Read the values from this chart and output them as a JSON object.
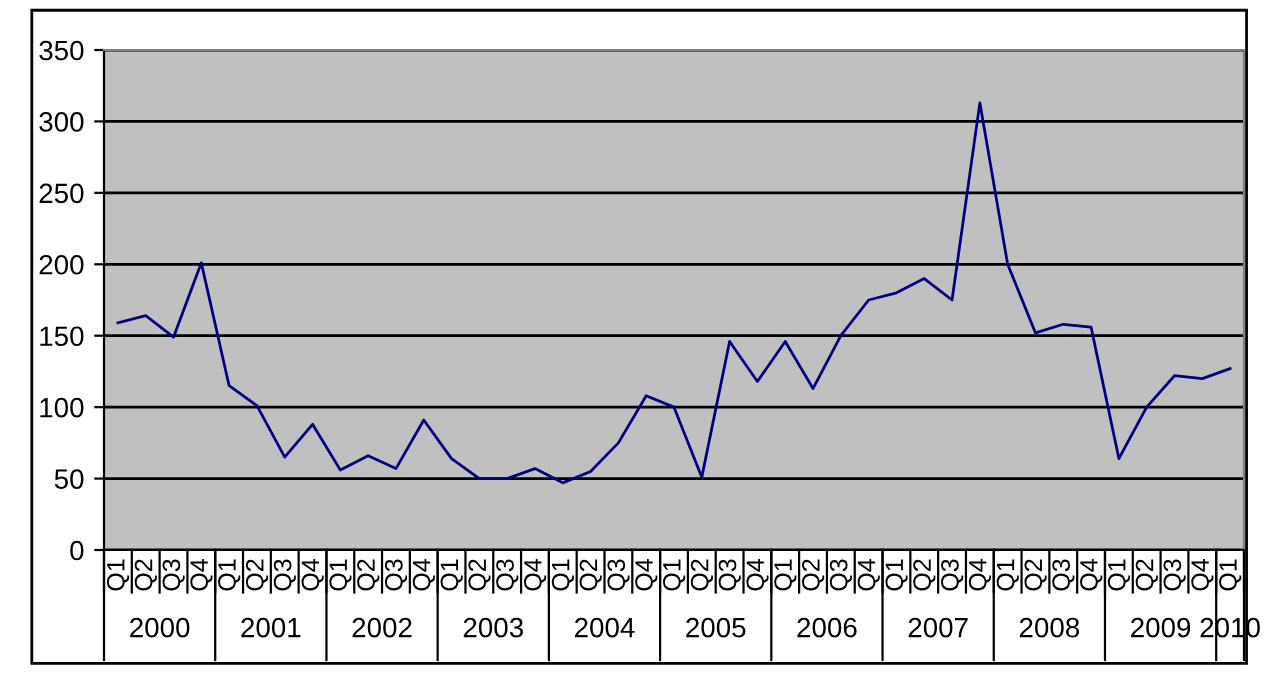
{
  "chart_data": {
    "type": "line",
    "categories": [
      "Q1",
      "Q2",
      "Q3",
      "Q4",
      "Q1",
      "Q2",
      "Q3",
      "Q4",
      "Q1",
      "Q2",
      "Q3",
      "Q4",
      "Q1",
      "Q2",
      "Q3",
      "Q4",
      "Q1",
      "Q2",
      "Q3",
      "Q4",
      "Q1",
      "Q2",
      "Q3",
      "Q4",
      "Q1",
      "Q2",
      "Q3",
      "Q4",
      "Q1",
      "Q2",
      "Q3",
      "Q4",
      "Q1",
      "Q2",
      "Q3",
      "Q4",
      "Q1",
      "Q2",
      "Q3",
      "Q4",
      "Q1"
    ],
    "series": [
      {
        "color": "#000080",
        "values": [
          159,
          164,
          149,
          201,
          115,
          101,
          65,
          88,
          56,
          66,
          57,
          91,
          64,
          50,
          50,
          57,
          47,
          55,
          75,
          108,
          100,
          51,
          146,
          118,
          146,
          113,
          150,
          175,
          180,
          190,
          175,
          313,
          200,
          152,
          158,
          156,
          64,
          100,
          122,
          120,
          127
        ]
      }
    ],
    "annotations": [
      "2000",
      "2001",
      "2002",
      "2003",
      "2004",
      "2005",
      "2006",
      "2007",
      "2008",
      "2009",
      "2010"
    ],
    "ylim": [
      0,
      350
    ],
    "yticks": [
      0,
      50,
      100,
      150,
      200,
      250,
      300,
      350
    ],
    "grid": "y",
    "legend": false,
    "marker": "none",
    "line_style": "solid"
  }
}
